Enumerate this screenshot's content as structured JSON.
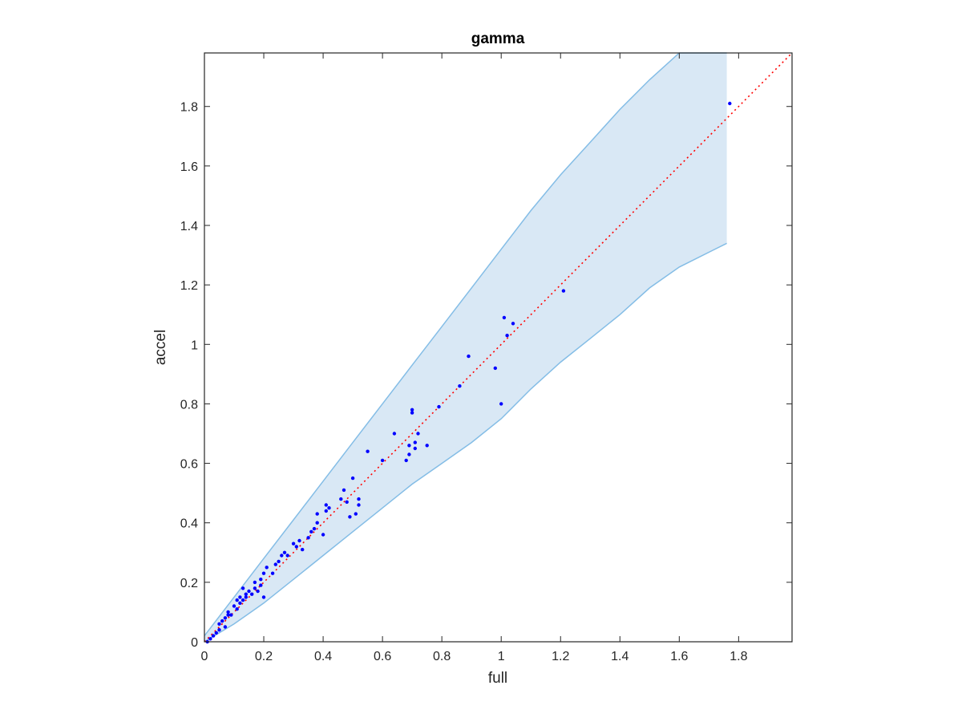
{
  "chart_data": {
    "type": "scatter",
    "title": "gamma",
    "xlabel": "full",
    "ylabel": "accel",
    "xlim": [
      0,
      1.98
    ],
    "ylim": [
      0,
      1.98
    ],
    "xticks": [
      "0",
      "0.2",
      "0.4",
      "0.6",
      "0.8",
      "1",
      "1.2",
      "1.4",
      "1.6",
      "1.8"
    ],
    "yticks": [
      "0",
      "0.2",
      "0.4",
      "0.6",
      "0.8",
      "1",
      "1.2",
      "1.4",
      "1.6",
      "1.8"
    ],
    "xtick_values": [
      0,
      0.2,
      0.4,
      0.6,
      0.8,
      1.0,
      1.2,
      1.4,
      1.6,
      1.8
    ],
    "ytick_values": [
      0,
      0.2,
      0.4,
      0.6,
      0.8,
      1.0,
      1.2,
      1.4,
      1.6,
      1.8
    ],
    "grid": false,
    "colors": {
      "points": "#0000ff",
      "reference_line": "#ff0000",
      "band_fill": "#d9e8f5",
      "band_edge": "#84bde6",
      "axes": "#262626"
    },
    "reference_line": {
      "style": "dotted",
      "x": [
        0,
        1.98
      ],
      "y": [
        0,
        1.98
      ]
    },
    "band": {
      "x": [
        0,
        0.1,
        0.2,
        0.3,
        0.4,
        0.5,
        0.6,
        0.7,
        0.8,
        0.9,
        1.0,
        1.1,
        1.2,
        1.3,
        1.4,
        1.5,
        1.6,
        1.76
      ],
      "upper": [
        0.02,
        0.15,
        0.28,
        0.41,
        0.54,
        0.67,
        0.8,
        0.93,
        1.06,
        1.19,
        1.32,
        1.45,
        1.57,
        1.68,
        1.79,
        1.89,
        1.98,
        1.98
      ],
      "lower": [
        0,
        0.06,
        0.13,
        0.21,
        0.29,
        0.37,
        0.45,
        0.53,
        0.6,
        0.67,
        0.75,
        0.85,
        0.94,
        1.02,
        1.1,
        1.19,
        1.26,
        1.34
      ]
    },
    "series": [
      {
        "x": [
          0.01,
          0.02,
          0.03,
          0.04,
          0.05,
          0.05,
          0.06,
          0.07,
          0.07,
          0.08,
          0.08,
          0.09,
          0.1,
          0.11,
          0.11,
          0.12,
          0.12,
          0.13,
          0.13,
          0.14,
          0.14,
          0.15,
          0.16,
          0.17,
          0.17,
          0.18,
          0.19,
          0.19,
          0.2,
          0.2,
          0.21,
          0.23,
          0.24,
          0.25,
          0.26,
          0.27,
          0.28,
          0.3,
          0.31,
          0.32,
          0.33,
          0.35,
          0.36,
          0.37,
          0.38,
          0.38,
          0.4,
          0.41,
          0.41,
          0.42,
          0.46,
          0.47,
          0.48,
          0.49,
          0.5,
          0.51,
          0.52,
          0.52,
          0.55,
          0.6,
          0.64,
          0.68,
          0.69,
          0.69,
          0.7,
          0.7,
          0.71,
          0.71,
          0.72,
          0.75,
          0.79,
          0.86,
          0.89,
          0.98,
          1.0,
          1.01,
          1.02,
          1.04,
          1.21,
          1.77
        ],
        "y": [
          0.0,
          0.01,
          0.02,
          0.03,
          0.04,
          0.06,
          0.07,
          0.05,
          0.08,
          0.09,
          0.1,
          0.09,
          0.12,
          0.11,
          0.14,
          0.13,
          0.15,
          0.14,
          0.18,
          0.15,
          0.16,
          0.17,
          0.16,
          0.18,
          0.2,
          0.17,
          0.19,
          0.21,
          0.15,
          0.23,
          0.25,
          0.23,
          0.26,
          0.27,
          0.29,
          0.3,
          0.29,
          0.33,
          0.32,
          0.34,
          0.31,
          0.35,
          0.37,
          0.38,
          0.4,
          0.43,
          0.36,
          0.44,
          0.46,
          0.45,
          0.48,
          0.51,
          0.47,
          0.42,
          0.55,
          0.43,
          0.46,
          0.48,
          0.64,
          0.61,
          0.7,
          0.61,
          0.63,
          0.66,
          0.77,
          0.78,
          0.65,
          0.67,
          0.7,
          0.66,
          0.79,
          0.86,
          0.96,
          0.92,
          0.8,
          1.09,
          1.03,
          1.07,
          1.18,
          1.81
        ]
      }
    ]
  }
}
